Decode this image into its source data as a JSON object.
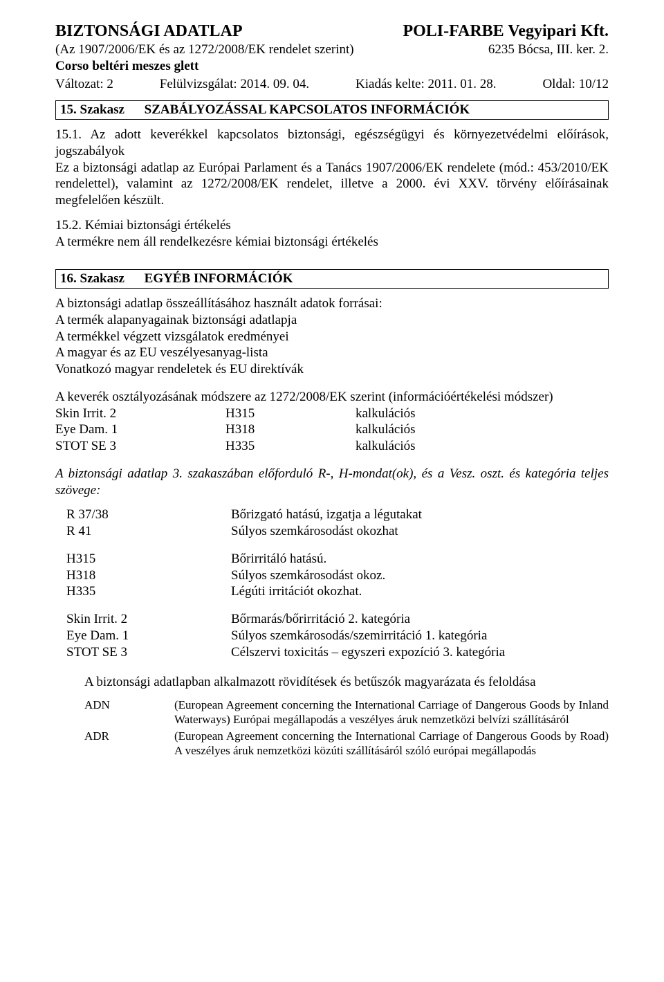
{
  "header": {
    "title_left": "BIZTONSÁGI ADATLAP",
    "title_right": "POLI-FARBE Vegyipari Kft.",
    "subtitle_left": "(Az 1907/2006/EK és az 1272/2008/EK rendelet szerint)",
    "subtitle_right": "6235 Bócsa, III. ker. 2.",
    "product": "Corso beltéri meszes glett",
    "variant_label": "Változat: 2",
    "revision": "Felülvizsgálat: 2014. 09. 04.",
    "issue": "Kiadás kelte: 2011. 01. 28.",
    "page": "Oldal: 10/12"
  },
  "section15": {
    "label": "15. Szakasz",
    "title": "SZABÁLYOZÁSSAL KAPCSOLATOS INFORMÁCIÓK",
    "p1_title": "15.1. Az adott keverékkel kapcsolatos biztonsági, egészségügyi és környezetvédelmi előírások, jogszabályok",
    "p1_body": "Ez a biztonsági adatlap az Európai Parlament és a Tanács 1907/2006/EK rendelete (mód.: 453/2010/EK rendelettel), valamint az 1272/2008/EK rendelet, illetve a 2000. évi XXV. törvény előírásainak megfelelően készült.",
    "p2_title": "15.2. Kémiai biztonsági értékelés",
    "p2_body": "A termékre nem áll rendelkezésre kémiai biztonsági értékelés"
  },
  "section16": {
    "label": "16. Szakasz",
    "title": "EGYÉB INFORMÁCIÓK",
    "sources_intro": "A biztonsági adatlap összeállításához használt adatok forrásai:",
    "sources": [
      "A termék alapanyagainak biztonsági adatlapja",
      "A termékkel végzett vizsgálatok eredményei",
      "A magyar és az EU veszélyesanyag-lista",
      "Vonatkozó magyar rendeletek és EU direktívák"
    ],
    "class_intro": "A keverék osztályozásának módszere az 1272/2008/EK szerint (információértékelési módszer)",
    "class_rows": [
      {
        "a": "Skin Irrit. 2",
        "b": "H315",
        "c": "kalkulációs"
      },
      {
        "a": "Eye Dam. 1",
        "b": "H318",
        "c": "kalkulációs"
      },
      {
        "a": "STOT SE 3",
        "b": "H335",
        "c": "kalkulációs"
      }
    ],
    "phrases_intro": "A biztonsági adatlap 3. szakaszában előforduló R-, H-mondat(ok), és a Vesz. oszt. és kategória teljes szövege:",
    "r_rows": [
      {
        "code": "R 37/38",
        "desc": "Bőrizgató hatású, izgatja a légutakat"
      },
      {
        "code": "R 41",
        "desc": "Súlyos szemkárosodást okozhat"
      }
    ],
    "h_rows": [
      {
        "code": "H315",
        "desc": "Bőrirritáló hatású."
      },
      {
        "code": "H318",
        "desc": "Súlyos szemkárosodást okoz."
      },
      {
        "code": "H335",
        "desc": "Légúti irritációt okozhat."
      }
    ],
    "cat_rows": [
      {
        "code": "Skin Irrit. 2",
        "desc": "Bőrmarás/bőrirritáció 2. kategória"
      },
      {
        "code": "Eye Dam. 1",
        "desc": "Súlyos szemkárosodás/szemirritáció 1. kategória"
      },
      {
        "code": "STOT SE 3",
        "desc": "Célszervi toxicitás – egyszeri expozíció 3. kategória"
      }
    ],
    "abbrev_title": "A biztonsági adatlapban alkalmazott rövidítések és betűszók magyarázata és feloldása",
    "abbrevs": [
      {
        "k": "ADN",
        "d": "(European Agreement concerning the International Carriage of Dangerous Goods by Inland Waterways) Európai megállapodás a veszélyes áruk nemzetközi belvízi szállításáról"
      },
      {
        "k": "ADR",
        "d": "(European Agreement concerning the International Carriage of Dangerous Goods by Road) A veszélyes áruk nemzetközi közúti szállításáról szóló európai megállapodás"
      }
    ]
  }
}
